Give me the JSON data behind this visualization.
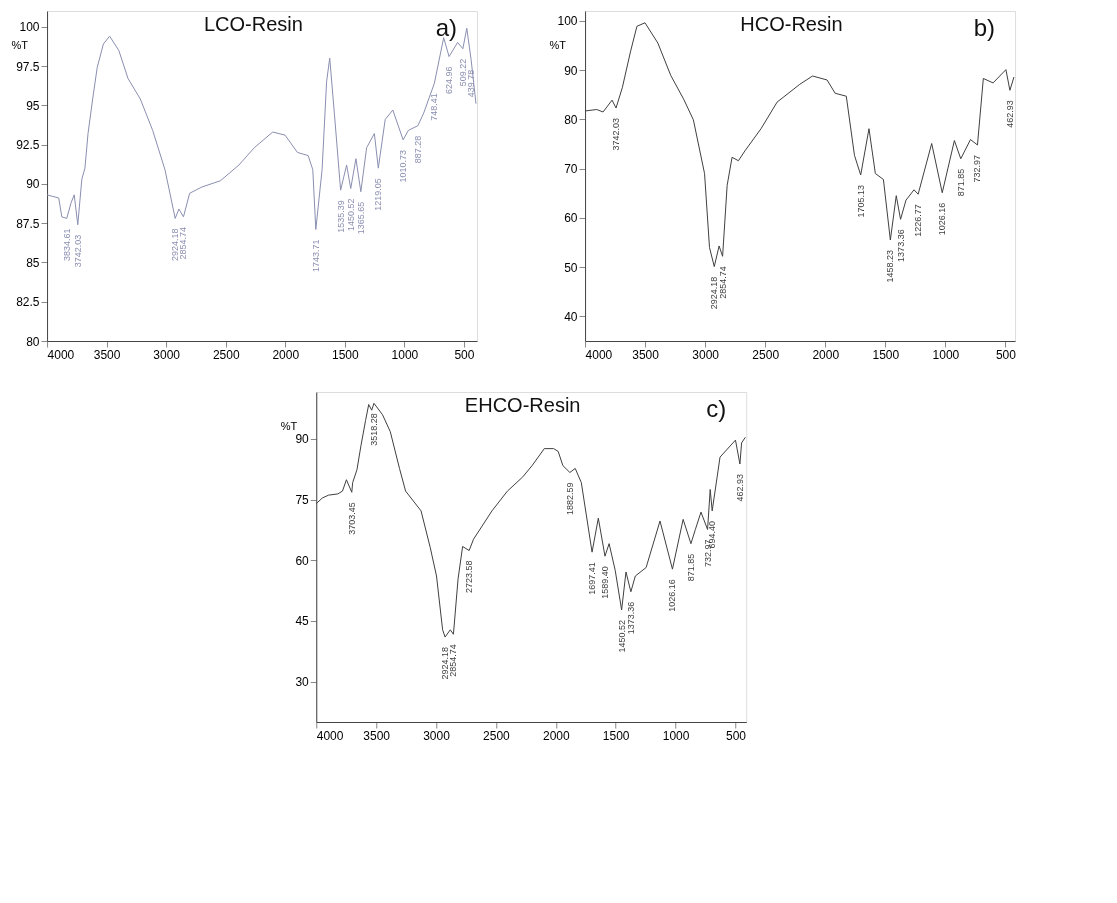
{
  "chart_data": [
    {
      "type": "line",
      "title": "LCO-Resin",
      "ylabel": "%T",
      "xlim": [
        4000,
        390
      ],
      "xticks": [
        4000,
        3500,
        3000,
        2500,
        2000,
        1500,
        1000,
        500
      ],
      "ylim": [
        80,
        101
      ],
      "yticks": [
        80,
        82.5,
        85,
        87.5,
        90,
        92.5,
        95,
        97.5,
        100
      ],
      "x": [
        4000,
        3902,
        3876,
        3834.61,
        3798,
        3772,
        3742.03,
        3708,
        3682,
        3656,
        3617,
        3579,
        3527,
        3475,
        3398,
        3320,
        3217,
        3113,
        3010,
        2924.18,
        2893,
        2854.74,
        2803,
        2700,
        2544,
        2389,
        2260,
        2105,
        2002,
        1898,
        1808,
        1769,
        1743.71,
        1691,
        1653,
        1627,
        1588,
        1535.39,
        1485,
        1450.52,
        1407,
        1365.65,
        1317,
        1252,
        1219.05,
        1161,
        1097,
        1010.73,
        967,
        887.28,
        838,
        748.41,
        670,
        624.96,
        553,
        509.22,
        476,
        439.78,
        399
      ],
      "series": [
        {
          "color": "#8a8fb0",
          "values": [
            89.3,
            89.1,
            87.9,
            87.8,
            88.8,
            89.3,
            87.4,
            90.3,
            91.0,
            93.2,
            95.4,
            97.4,
            98.9,
            99.4,
            98.5,
            96.7,
            95.4,
            93.4,
            90.9,
            87.8,
            88.4,
            87.9,
            89.4,
            89.8,
            90.2,
            91.2,
            92.3,
            93.3,
            93.1,
            92.0,
            91.8,
            90.9,
            87.1,
            90.9,
            96.5,
            98.0,
            94.5,
            89.6,
            91.2,
            89.7,
            91.6,
            89.5,
            92.3,
            93.2,
            91.0,
            94.1,
            94.7,
            92.8,
            93.4,
            93.7,
            94.5,
            96.4,
            99.3,
            98.1,
            99.0,
            98.6,
            99.9,
            97.9,
            95.1
          ]
        }
      ],
      "annotations": [
        "a)",
        {
          "text": "3834.61",
          "x": 3834.61,
          "y": 87.8
        },
        {
          "text": "3742.03",
          "x": 3742.03,
          "y": 87.4
        },
        {
          "text": "2924.18",
          "x": 2924.18,
          "y": 87.8
        },
        {
          "text": "2854.74",
          "x": 2854.74,
          "y": 87.9
        },
        {
          "text": "1743.71",
          "x": 1743.71,
          "y": 87.1
        },
        {
          "text": "1535.39",
          "x": 1535.39,
          "y": 89.6
        },
        {
          "text": "1450.52",
          "x": 1450.52,
          "y": 89.7
        },
        {
          "text": "1365.65",
          "x": 1365.65,
          "y": 89.5
        },
        {
          "text": "1219.05",
          "x": 1219.05,
          "y": 91.0
        },
        {
          "text": "1010.73",
          "x": 1010.73,
          "y": 92.8
        },
        {
          "text": "887.28",
          "x": 887.28,
          "y": 93.7
        },
        {
          "text": "748.41",
          "x": 748.41,
          "y": 96.4
        },
        {
          "text": "624.96",
          "x": 624.96,
          "y": 98.1
        },
        {
          "text": "509.22",
          "x": 509.22,
          "y": 98.6
        },
        {
          "text": "439.78",
          "x": 439.78,
          "y": 97.9
        }
      ]
    },
    {
      "type": "line",
      "title": "HCO-Resin",
      "ylabel": "%T",
      "xlim": [
        4000,
        420
      ],
      "xticks": [
        4000,
        3500,
        3000,
        2500,
        2000,
        1500,
        1000,
        500
      ],
      "ylim": [
        35,
        102
      ],
      "yticks": [
        40,
        50,
        60,
        70,
        80,
        90,
        100
      ],
      "x": [
        4000,
        3903,
        3850,
        3775,
        3742.03,
        3689,
        3622,
        3568,
        3501,
        3394,
        3286,
        3179,
        3098,
        3005,
        2964,
        2924.18,
        2884,
        2854.74,
        2817,
        2776,
        2723,
        2669,
        2535,
        2401,
        2213,
        2106,
        1985,
        1918,
        1825,
        1757,
        1705.13,
        1636,
        1583,
        1516,
        1458.23,
        1409,
        1373.36,
        1328,
        1261,
        1226.77,
        1114,
        1026.16,
        925,
        871.85,
        791,
        732.97,
        684,
        603,
        496,
        462.93,
        429
      ],
      "series": [
        {
          "color": "#404040",
          "values": [
            81.7,
            82.0,
            81.5,
            83.9,
            82.3,
            86.5,
            93.7,
            98.9,
            99.6,
            95.5,
            88.9,
            84.1,
            79.9,
            69.0,
            54.0,
            50.1,
            54.3,
            52.2,
            66.6,
            72.3,
            71.6,
            73.6,
            78.1,
            83.5,
            87.1,
            88.8,
            88.0,
            85.3,
            84.7,
            72.7,
            68.7,
            78.1,
            69.0,
            67.8,
            55.5,
            64.5,
            59.7,
            63.6,
            65.7,
            64.8,
            75.1,
            65.1,
            75.7,
            72.0,
            75.9,
            74.8,
            88.3,
            87.4,
            90.1,
            85.9,
            88.6
          ]
        }
      ],
      "annotations": [
        "b)",
        {
          "text": "3742.03",
          "x": 3742.03,
          "y": 82.3
        },
        {
          "text": "2924.18",
          "x": 2924.18,
          "y": 50.1
        },
        {
          "text": "2854.74",
          "x": 2854.74,
          "y": 52.2
        },
        {
          "text": "1705.13",
          "x": 1705.13,
          "y": 68.7
        },
        {
          "text": "1458.23",
          "x": 1458.23,
          "y": 55.5
        },
        {
          "text": "1373.36",
          "x": 1373.36,
          "y": 59.7
        },
        {
          "text": "1226.77",
          "x": 1226.77,
          "y": 64.8
        },
        {
          "text": "1026.16",
          "x": 1026.16,
          "y": 65.1
        },
        {
          "text": "871.85",
          "x": 871.85,
          "y": 72.0
        },
        {
          "text": "732.97",
          "x": 732.97,
          "y": 74.8
        },
        {
          "text": "462.93",
          "x": 462.93,
          "y": 85.9
        }
      ]
    },
    {
      "type": "line",
      "title": "EHCO-Resin",
      "ylabel": "%T",
      "xlim": [
        4000,
        410
      ],
      "xticks": [
        4000,
        3500,
        3000,
        2500,
        2000,
        1500,
        1000,
        500
      ],
      "ylim": [
        20,
        101.6
      ],
      "yticks": [
        30,
        45,
        60,
        75,
        90
      ],
      "x": [
        4000,
        3949,
        3897,
        3820,
        3781,
        3748,
        3703.45,
        3696,
        3660,
        3627,
        3588,
        3562,
        3537,
        3518.28,
        3447,
        3382,
        3305,
        3254,
        3125,
        3048,
        2996,
        2945,
        2924.18,
        2881,
        2854.74,
        2816,
        2778,
        2723.58,
        2687,
        2533,
        2404,
        2276,
        2198,
        2096,
        2018,
        1980,
        1941,
        1882.59,
        1838,
        1787,
        1697.41,
        1645,
        1589.4,
        1555,
        1504,
        1450.52,
        1414,
        1373.36,
        1336,
        1246,
        1130,
        1026.16,
        937,
        871.85,
        835,
        788,
        732.97,
        711,
        694.4,
        629,
        500,
        462.93,
        449,
        418
      ],
      "series": [
        {
          "color": "#404040",
          "values": [
            74.0,
            75.4,
            76.1,
            76.4,
            77.1,
            79.9,
            76.8,
            79.2,
            82.4,
            88.3,
            94.6,
            98.5,
            97.1,
            98.8,
            96.0,
            91.8,
            82.7,
            77.1,
            72.2,
            63.1,
            56.1,
            42.8,
            41.0,
            42.8,
            41.7,
            55.4,
            63.4,
            62.4,
            65.2,
            72.2,
            77.1,
            80.6,
            83.4,
            87.6,
            87.6,
            86.9,
            83.4,
            81.7,
            82.7,
            79.2,
            62.0,
            70.4,
            61.0,
            64.1,
            57.5,
            47.7,
            57.1,
            52.2,
            56.1,
            58.2,
            69.7,
            57.8,
            70.1,
            64.1,
            67.6,
            71.9,
            67.6,
            77.5,
            72.2,
            85.5,
            89.7,
            83.8,
            89.0,
            90.4
          ]
        }
      ],
      "annotations": [
        "c)",
        {
          "text": "3703.45",
          "x": 3703.45,
          "y": 76.8
        },
        {
          "text": "3518.28",
          "x": 3518.28,
          "y": 98.8
        },
        {
          "text": "2924.18",
          "x": 2924.18,
          "y": 41.0
        },
        {
          "text": "2854.74",
          "x": 2854.74,
          "y": 41.7
        },
        {
          "text": "2723.58",
          "x": 2723.58,
          "y": 62.4
        },
        {
          "text": "1882.59",
          "x": 1882.59,
          "y": 81.7
        },
        {
          "text": "1697.41",
          "x": 1697.41,
          "y": 62.0
        },
        {
          "text": "1589.40",
          "x": 1589.4,
          "y": 61.0
        },
        {
          "text": "1450.52",
          "x": 1450.52,
          "y": 47.7
        },
        {
          "text": "1373.36",
          "x": 1373.36,
          "y": 52.2
        },
        {
          "text": "1026.16",
          "x": 1026.16,
          "y": 57.8
        },
        {
          "text": "871.85",
          "x": 871.85,
          "y": 64.1
        },
        {
          "text": "732.97",
          "x": 732.97,
          "y": 67.6
        },
        {
          "text": "694.40",
          "x": 694.4,
          "y": 72.2
        },
        {
          "text": "462.93",
          "x": 462.93,
          "y": 83.8
        }
      ]
    }
  ]
}
